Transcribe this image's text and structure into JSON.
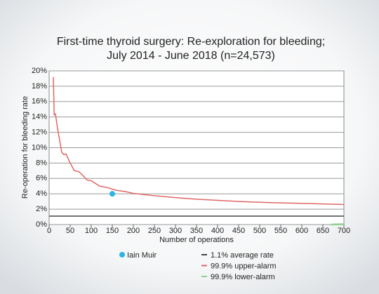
{
  "chart_data": {
    "type": "line",
    "title": [
      "First-time thyroid surgery: Re-exploration for bleeding;",
      "July 2014 - June 2018 (n=24,573)"
    ],
    "x_label": "Number of operations",
    "y_label": "Re-operation for bleeding rate",
    "xlim": [
      0,
      700
    ],
    "ylim": [
      0,
      20
    ],
    "xticks": [
      0,
      50,
      100,
      150,
      200,
      250,
      300,
      350,
      400,
      450,
      500,
      550,
      600,
      650,
      700
    ],
    "yticks": [
      {
        "value": 0,
        "label": "0%"
      },
      {
        "value": 2,
        "label": "2%"
      },
      {
        "value": 4,
        "label": "4%"
      },
      {
        "value": 6,
        "label": "6%"
      },
      {
        "value": 8,
        "label": "8%"
      },
      {
        "value": 10,
        "label": "10%"
      },
      {
        "value": 12,
        "label": "12%"
      },
      {
        "value": 14,
        "label": "14%"
      },
      {
        "value": 16,
        "label": "16%"
      },
      {
        "value": 18,
        "label": "18%"
      },
      {
        "value": 20,
        "label": "20%"
      }
    ],
    "grid": true,
    "series": [
      {
        "name": "Iain Muir",
        "color": "#2bb5e6",
        "style": "point",
        "x": [
          150
        ],
        "values": [
          4.0
        ]
      },
      {
        "name": "1.1% average rate",
        "color": "#444444",
        "style": "line",
        "x": [
          0,
          700
        ],
        "values": [
          1.1,
          1.1
        ]
      },
      {
        "name": "99.9% upper-alarm",
        "color": "#e06666",
        "style": "line",
        "x": [
          10,
          12,
          15,
          20,
          30,
          35,
          40,
          50,
          60,
          70,
          80,
          90,
          100,
          120,
          130,
          140,
          150,
          160,
          180,
          200,
          250,
          300,
          350,
          400,
          450,
          500,
          550,
          600,
          650,
          700
        ],
        "values": [
          19.2,
          14.3,
          14.4,
          12.5,
          9.4,
          9.1,
          9.2,
          8.0,
          7.0,
          6.9,
          6.4,
          5.8,
          5.7,
          5.0,
          4.9,
          4.8,
          4.6,
          4.45,
          4.3,
          4.05,
          3.75,
          3.5,
          3.3,
          3.15,
          3.0,
          2.9,
          2.82,
          2.75,
          2.68,
          2.6
        ]
      },
      {
        "name": "99.9% lower-alarm",
        "color": "#8fd18f",
        "style": "line",
        "x": [
          670,
          700
        ],
        "values": [
          0.01,
          0.04
        ]
      }
    ]
  }
}
